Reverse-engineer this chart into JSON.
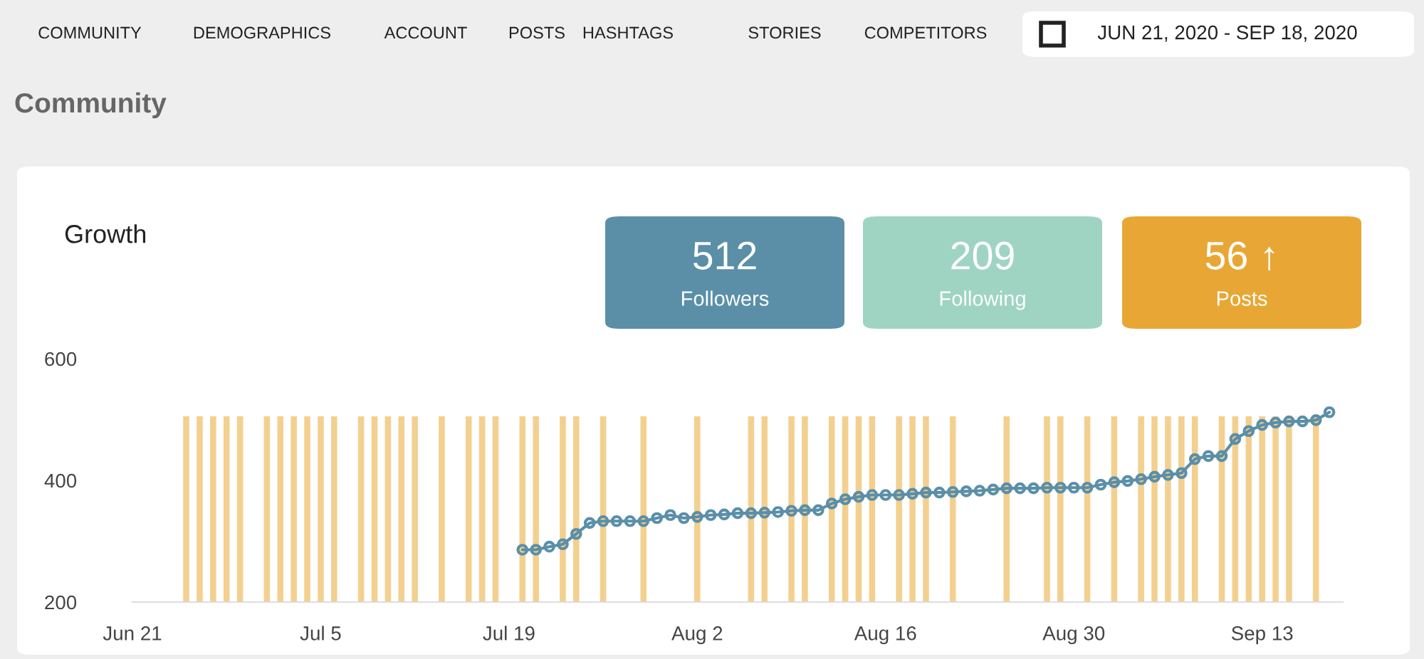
{
  "chart_data": [
    {
      "type": "other",
      "annotations": [
        "COMMUNITY",
        "DEMOGRAPHICS",
        "ACCOUNT",
        "POSTS",
        "HASHTAGS",
        "STORIES",
        "COMPETITORS",
        "JUN 21, 2020 - SEP 18, 2020",
        "Community",
        "512",
        "Followers",
        "209",
        "Following",
        "56 ↑",
        "Posts"
      ]
    },
    {
      "type": "line",
      "title": "Growth",
      "xlim": [
        "2020-06-21",
        "2020-09-19"
      ],
      "xticks": [
        {
          "value": "2020-06-21",
          "label": "Jun 21"
        },
        {
          "value": "2020-07-05",
          "label": "Jul 5"
        },
        {
          "value": "2020-07-19",
          "label": "Jul 19"
        },
        {
          "value": "2020-08-02",
          "label": "Aug 2"
        },
        {
          "value": "2020-08-16",
          "label": "Aug 16"
        },
        {
          "value": "2020-08-30",
          "label": "Aug 30"
        },
        {
          "value": "2020-09-13",
          "label": "Sep 13"
        }
      ],
      "ylim": [
        200,
        600
      ],
      "yticks": [
        200,
        400,
        600
      ],
      "grid": false,
      "legend": false,
      "series": [
        {
          "type": "bar",
          "color": "#f3d08f",
          "x": [
            "2020-06-25",
            "2020-06-26",
            "2020-06-27",
            "2020-06-28",
            "2020-06-29",
            "2020-07-01",
            "2020-07-02",
            "2020-07-03",
            "2020-07-04",
            "2020-07-05",
            "2020-07-06",
            "2020-07-08",
            "2020-07-09",
            "2020-07-10",
            "2020-07-11",
            "2020-07-12",
            "2020-07-14",
            "2020-07-16",
            "2020-07-17",
            "2020-07-18",
            "2020-07-20",
            "2020-07-21",
            "2020-07-23",
            "2020-07-24",
            "2020-07-26",
            "2020-07-29",
            "2020-08-02",
            "2020-08-06",
            "2020-08-07",
            "2020-08-09",
            "2020-08-10",
            "2020-08-12",
            "2020-08-13",
            "2020-08-14",
            "2020-08-15",
            "2020-08-17",
            "2020-08-18",
            "2020-08-19",
            "2020-08-21",
            "2020-08-25",
            "2020-08-28",
            "2020-08-29",
            "2020-08-31",
            "2020-09-02",
            "2020-09-04",
            "2020-09-05",
            "2020-09-06",
            "2020-09-07",
            "2020-09-08",
            "2020-09-10",
            "2020-09-11",
            "2020-09-12",
            "2020-09-13",
            "2020-09-14",
            "2020-09-15",
            "2020-09-17"
          ],
          "values": [
            507,
            507,
            507,
            507,
            507,
            507,
            507,
            507,
            507,
            507,
            507,
            507,
            507,
            507,
            507,
            507,
            507,
            507,
            507,
            507,
            507,
            507,
            507,
            507,
            507,
            507,
            507,
            507,
            507,
            507,
            507,
            507,
            507,
            507,
            507,
            507,
            507,
            507,
            507,
            507,
            507,
            507,
            507,
            507,
            507,
            507,
            507,
            507,
            507,
            507,
            507,
            507,
            507,
            507,
            507,
            507
          ]
        },
        {
          "type": "line",
          "color": "#5b8fa8",
          "marker": "circle",
          "line_style": "solid",
          "x": [
            "2020-07-20",
            "2020-07-21",
            "2020-07-22",
            "2020-07-23",
            "2020-07-24",
            "2020-07-25",
            "2020-07-26",
            "2020-07-27",
            "2020-07-28",
            "2020-07-29",
            "2020-07-30",
            "2020-07-31",
            "2020-08-01",
            "2020-08-02",
            "2020-08-03",
            "2020-08-04",
            "2020-08-05",
            "2020-08-06",
            "2020-08-07",
            "2020-08-08",
            "2020-08-09",
            "2020-08-10",
            "2020-08-11",
            "2020-08-12",
            "2020-08-13",
            "2020-08-14",
            "2020-08-15",
            "2020-08-16",
            "2020-08-17",
            "2020-08-18",
            "2020-08-19",
            "2020-08-20",
            "2020-08-21",
            "2020-08-22",
            "2020-08-23",
            "2020-08-24",
            "2020-08-25",
            "2020-08-26",
            "2020-08-27",
            "2020-08-28",
            "2020-08-29",
            "2020-08-30",
            "2020-08-31",
            "2020-09-01",
            "2020-09-02",
            "2020-09-03",
            "2020-09-04",
            "2020-09-05",
            "2020-09-06",
            "2020-09-07",
            "2020-09-08",
            "2020-09-09",
            "2020-09-10",
            "2020-09-11",
            "2020-09-12",
            "2020-09-13",
            "2020-09-14",
            "2020-09-15",
            "2020-09-16",
            "2020-09-17",
            "2020-09-18"
          ],
          "values": [
            286,
            286,
            291,
            295,
            312,
            330,
            333,
            333,
            333,
            333,
            338,
            343,
            338,
            340,
            343,
            344,
            346,
            346,
            347,
            348,
            350,
            351,
            351,
            362,
            369,
            373,
            376,
            376,
            376,
            378,
            380,
            380,
            381,
            382,
            383,
            385,
            387,
            387,
            387,
            388,
            388,
            388,
            388,
            393,
            397,
            399,
            402,
            406,
            409,
            412,
            435,
            440,
            440,
            468,
            481,
            491,
            495,
            497,
            497,
            499,
            512
          ]
        }
      ]
    }
  ]
}
